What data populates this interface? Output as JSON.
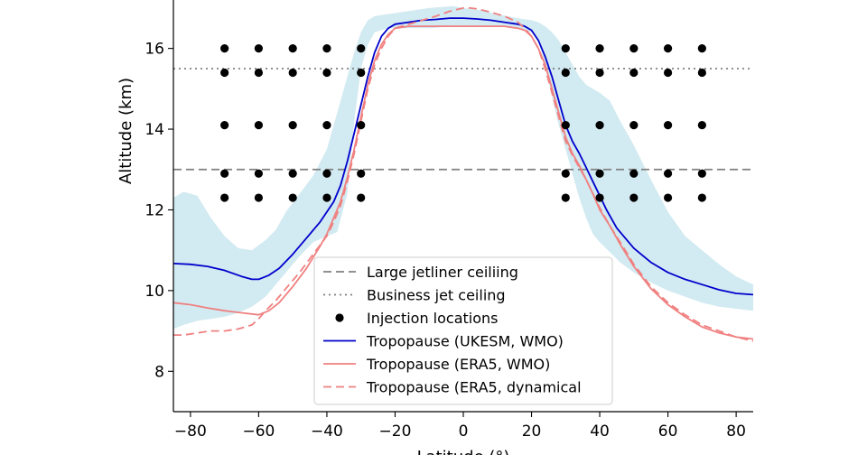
{
  "chart_data": {
    "type": "line",
    "xlabel": "Latitude (°)",
    "ylabel": "Altitude (km)",
    "xlim": [
      -85,
      85
    ],
    "ylim": [
      7.0,
      17.2
    ],
    "xticks": [
      -80,
      -60,
      -40,
      -20,
      0,
      20,
      40,
      60,
      80
    ],
    "yticks": [
      8,
      10,
      12,
      14,
      16
    ],
    "grid": false,
    "legend_position": "lower-center",
    "reference_lines": [
      {
        "name": "Large jetliner ceiling",
        "y": 13.0,
        "style": "dashed",
        "color": "#808080"
      },
      {
        "name": "Business jet ceiling",
        "y": 15.5,
        "style": "dotted",
        "color": "#808080"
      }
    ],
    "injection_locations": {
      "name": "Injection locations",
      "color": "#000000",
      "latitudes": [
        -70,
        -60,
        -50,
        -40,
        -30,
        30,
        40,
        50,
        60,
        70
      ],
      "altitudes": [
        12.3,
        12.9,
        14.1,
        15.4,
        16.0
      ]
    },
    "uncertainty_band": {
      "color": "#add8e6",
      "x": [
        -85,
        -82,
        -78,
        -74,
        -70,
        -66,
        -62,
        -58,
        -55,
        -52,
        -48,
        -44,
        -40,
        -37,
        -34,
        -32,
        -30,
        -28,
        -26,
        -22,
        -18,
        -10,
        -3,
        0,
        5,
        10,
        16,
        20,
        22,
        24,
        26,
        28,
        30,
        32,
        34,
        36,
        38,
        40,
        43,
        46,
        50,
        55,
        60,
        65,
        70,
        75,
        80,
        85
      ],
      "upper": [
        12.3,
        12.45,
        12.35,
        11.8,
        11.35,
        11.05,
        11.0,
        11.25,
        11.5,
        11.95,
        12.4,
        12.85,
        13.5,
        14.4,
        15.3,
        15.9,
        16.4,
        16.7,
        16.8,
        16.85,
        16.9,
        17.0,
        17.05,
        17.0,
        16.95,
        16.85,
        16.75,
        16.7,
        16.65,
        16.55,
        16.4,
        16.2,
        15.9,
        15.6,
        15.3,
        15.1,
        15.0,
        14.9,
        14.7,
        14.2,
        13.6,
        12.75,
        11.95,
        11.35,
        11.0,
        10.65,
        10.35,
        10.15
      ],
      "lower": [
        9.05,
        9.15,
        9.25,
        9.3,
        9.35,
        9.45,
        9.6,
        9.85,
        10.15,
        10.45,
        10.85,
        11.2,
        11.35,
        11.45,
        12.4,
        14.2,
        15.5,
        16.1,
        16.4,
        16.5,
        16.5,
        16.5,
        16.55,
        16.55,
        16.55,
        16.55,
        16.5,
        16.4,
        16.2,
        15.6,
        14.8,
        14.1,
        13.5,
        12.9,
        12.3,
        11.8,
        11.4,
        11.2,
        10.95,
        10.7,
        10.45,
        10.2,
        10.0,
        9.85,
        9.7,
        9.6,
        9.55,
        9.5
      ]
    },
    "series": [
      {
        "name": "Tropopause (UKESM, WMO)",
        "color": "#0000cc",
        "style": "solid",
        "x": [
          -85,
          -80,
          -75,
          -70,
          -65,
          -62,
          -60,
          -57,
          -54,
          -50,
          -46,
          -42,
          -40,
          -38,
          -36,
          -34,
          -32,
          -30,
          -28,
          -26,
          -24,
          -22,
          -20,
          -16,
          -12,
          -8,
          -4,
          0,
          4,
          8,
          12,
          16,
          18,
          20,
          22,
          24,
          26,
          28,
          30,
          32,
          34,
          36,
          38,
          40,
          42,
          45,
          50,
          55,
          60,
          65,
          70,
          75,
          80,
          85
        ],
        "y": [
          10.67,
          10.65,
          10.6,
          10.5,
          10.35,
          10.28,
          10.28,
          10.38,
          10.55,
          10.9,
          11.3,
          11.7,
          11.95,
          12.2,
          12.6,
          13.2,
          13.9,
          14.6,
          15.3,
          15.9,
          16.3,
          16.5,
          16.6,
          16.65,
          16.7,
          16.72,
          16.75,
          16.75,
          16.73,
          16.7,
          16.65,
          16.6,
          16.55,
          16.45,
          16.2,
          15.8,
          15.3,
          14.7,
          14.1,
          13.7,
          13.4,
          13.05,
          12.7,
          12.35,
          12.0,
          11.55,
          11.05,
          10.7,
          10.45,
          10.28,
          10.15,
          10.02,
          9.93,
          9.9
        ]
      },
      {
        "name": "Tropopause (ERA5, WMO)",
        "color": "#f08080",
        "style": "solid",
        "x": [
          -85,
          -80,
          -75,
          -70,
          -65,
          -60,
          -57,
          -54,
          -50,
          -46,
          -42,
          -40,
          -38,
          -36,
          -34,
          -32,
          -30,
          -28,
          -26,
          -24,
          -22,
          -20,
          -16,
          -12,
          -8,
          -4,
          0,
          4,
          8,
          12,
          16,
          18,
          20,
          22,
          24,
          26,
          28,
          30,
          32,
          34,
          36,
          38,
          40,
          43,
          46,
          50,
          55,
          60,
          65,
          70,
          75,
          80,
          85
        ],
        "y": [
          9.7,
          9.65,
          9.57,
          9.5,
          9.45,
          9.4,
          9.5,
          9.7,
          10.1,
          10.55,
          11.1,
          11.4,
          11.8,
          12.2,
          12.8,
          13.5,
          14.3,
          15.1,
          15.7,
          16.1,
          16.35,
          16.5,
          16.55,
          16.55,
          16.55,
          16.55,
          16.55,
          16.55,
          16.55,
          16.55,
          16.5,
          16.45,
          16.3,
          16.0,
          15.6,
          15.0,
          14.4,
          13.8,
          13.4,
          13.1,
          12.75,
          12.4,
          12.0,
          11.6,
          11.15,
          10.6,
          10.05,
          9.65,
          9.35,
          9.1,
          8.95,
          8.85,
          8.8
        ]
      },
      {
        "name": "Tropopause (ERA5, dynamical",
        "color": "#f08080",
        "style": "dashed",
        "x": [
          -85,
          -82,
          -78,
          -74,
          -70,
          -66,
          -62,
          -60,
          -58,
          -55,
          -52,
          -48,
          -44,
          -40,
          -38,
          -36,
          -34,
          -32,
          -30,
          -28,
          -26,
          -24,
          -22,
          -20,
          -16,
          -12,
          -8,
          -4,
          0,
          2,
          4,
          8,
          12,
          16,
          18,
          20,
          22,
          24,
          26,
          28,
          30,
          32,
          34,
          36,
          38,
          40,
          43,
          46,
          50,
          55,
          60,
          65,
          70,
          75,
          80,
          85
        ],
        "y": [
          8.9,
          8.9,
          8.95,
          9.0,
          9.0,
          9.05,
          9.15,
          9.3,
          9.5,
          9.75,
          10.05,
          10.45,
          10.9,
          11.35,
          11.7,
          12.1,
          12.7,
          13.4,
          14.2,
          15.0,
          15.6,
          16.0,
          16.3,
          16.5,
          16.6,
          16.7,
          16.8,
          16.92,
          17.0,
          17.0,
          16.98,
          16.9,
          16.8,
          16.65,
          16.5,
          16.3,
          16.0,
          15.5,
          14.9,
          14.3,
          13.7,
          13.35,
          13.05,
          12.75,
          12.4,
          12.05,
          11.6,
          11.2,
          10.65,
          10.1,
          9.7,
          9.4,
          9.15,
          9.0,
          8.85,
          8.75
        ]
      }
    ],
    "legend": [
      {
        "label": "Large jetliner ceiliing",
        "marker": "dashed-line",
        "color": "#808080"
      },
      {
        "label": "Business jet ceiling",
        "marker": "dotted-line",
        "color": "#808080"
      },
      {
        "label": "Injection locations",
        "marker": "dot",
        "color": "#000000"
      },
      {
        "label": "Tropopause (UKESM, WMO)",
        "marker": "solid-line",
        "color": "#0000cc"
      },
      {
        "label": "Tropopause (ERA5, WMO)",
        "marker": "solid-line",
        "color": "#f08080"
      },
      {
        "label": "Tropopause (ERA5, dynamical",
        "marker": "dashed-line",
        "color": "#f08080"
      }
    ]
  }
}
